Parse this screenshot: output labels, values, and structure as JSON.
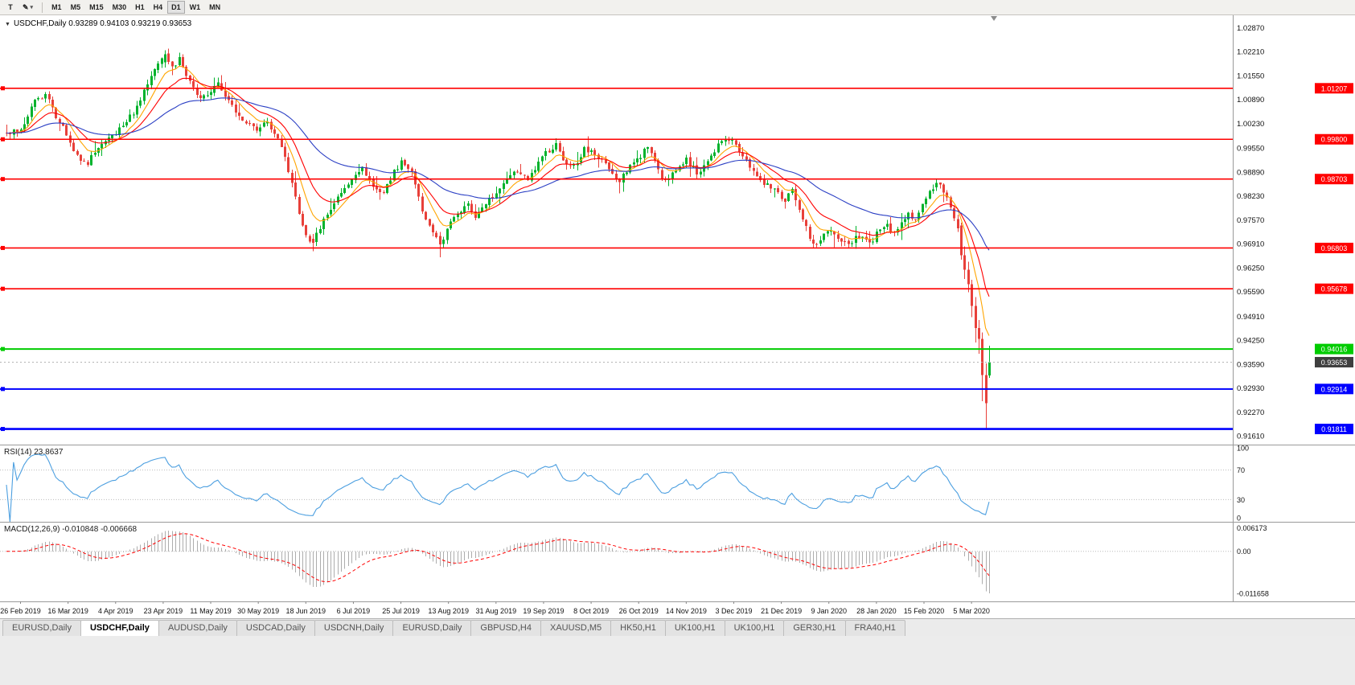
{
  "toolbar": {
    "text_tool_label": "T",
    "draw_tool_label": "✎",
    "dropdown_arrow": "▾",
    "timeframes": [
      "M1",
      "M5",
      "M15",
      "M30",
      "H1",
      "H4",
      "D1",
      "W1",
      "MN"
    ],
    "active_timeframe": "D1"
  },
  "chart": {
    "expander_icon": "▼",
    "title": "USDCHF,Daily 0.93289 0.94103 0.93219 0.93653",
    "symbol": "USDCHF",
    "period": "Daily"
  },
  "indicators": {
    "rsi_label": "RSI(14) 23.8637",
    "rsi_axis_labels": [
      "100",
      "70",
      "30",
      "0"
    ],
    "rsi_axis_values": [
      100,
      70,
      30,
      0
    ],
    "macd_label": "MACD(12,26,9) -0.010848 -0.006668",
    "macd_axis_top": "0.006173",
    "macd_axis_zero": "0.00",
    "macd_axis_bottom": "-0.011658"
  },
  "price_axis": {
    "ticks": [
      "1.02870",
      "1.02210",
      "1.01550",
      "1.00890",
      "1.00230",
      "0.99550",
      "0.98890",
      "0.98230",
      "0.97570",
      "0.96910",
      "0.96250",
      "0.95590",
      "0.94910",
      "0.94250",
      "0.93590",
      "0.92930",
      "0.92270",
      "0.91610"
    ]
  },
  "time_axis": {
    "labels": [
      "26 Feb 2019",
      "16 Mar 2019",
      "4 Apr 2019",
      "23 Apr 2019",
      "11 May 2019",
      "30 May 2019",
      "18 Jun 2019",
      "6 Jul 2019",
      "25 Jul 2019",
      "13 Aug 2019",
      "31 Aug 2019",
      "19 Sep 2019",
      "8 Oct 2019",
      "26 Oct 2019",
      "14 Nov 2019",
      "3 Dec 2019",
      "21 Dec 2019",
      "9 Jan 2020",
      "28 Jan 2020",
      "15 Feb 2020",
      "5 Mar 2020"
    ]
  },
  "levels": [
    {
      "label": "1.01207",
      "value": 1.01207,
      "color": "#FF0000",
      "width": 1.6
    },
    {
      "label": "0.99800",
      "value": 0.998,
      "color": "#FF0000",
      "width": 1.6
    },
    {
      "label": "0.98703",
      "value": 0.98703,
      "color": "#FF0000",
      "width": 1.6
    },
    {
      "label": "0.96803",
      "value": 0.96803,
      "color": "#FF0000",
      "width": 1.6
    },
    {
      "label": "0.95678",
      "value": 0.95678,
      "color": "#FF0000",
      "width": 1.6
    },
    {
      "label": "0.94016",
      "value": 0.94016,
      "color": "#00CC00",
      "width": 2
    },
    {
      "label": "0.92914",
      "value": 0.92914,
      "color": "#0000FF",
      "width": 2
    },
    {
      "label": "0.91811",
      "value": 0.91811,
      "color": "#0000FF",
      "width": 2.6
    }
  ],
  "current_price": {
    "label": "0.93653",
    "value": 0.93653,
    "box_color": "#3F3F3F"
  },
  "tabs": {
    "items": [
      {
        "label": "EURUSD,Daily",
        "active": false
      },
      {
        "label": "USDCHF,Daily",
        "active": true
      },
      {
        "label": "AUDUSD,Daily",
        "active": false
      },
      {
        "label": "USDCAD,Daily",
        "active": false
      },
      {
        "label": "USDCNH,Daily",
        "active": false
      },
      {
        "label": "EURUSD,Daily",
        "active": false
      },
      {
        "label": "GBPUSD,H4",
        "active": false
      },
      {
        "label": "XAUUSD,M5",
        "active": false
      },
      {
        "label": "HK50,H1",
        "active": false
      },
      {
        "label": "UK100,H1",
        "active": false
      },
      {
        "label": "UK100,H1",
        "active": false
      },
      {
        "label": "GER30,H1",
        "active": false
      },
      {
        "label": "FRA40,H1",
        "active": false
      }
    ]
  },
  "chart_data": {
    "type": "candlestick",
    "symbol": "USDCHF",
    "period": "Daily",
    "bars_visible": 280,
    "price_range_top": 1.0322,
    "price_range_bottom": 0.9138,
    "current_ohlc": {
      "open": 0.93289,
      "high": 0.94103,
      "low": 0.93219,
      "close": 0.93653
    },
    "candle_up_color": "#00B22C",
    "candle_down_color": "#E8403A",
    "close_path_anchors": [
      [
        0,
        0.999
      ],
      [
        4,
        1.001
      ],
      [
        8,
        1.0085
      ],
      [
        11,
        1.0105
      ],
      [
        14,
        1.0045
      ],
      [
        17,
        0.9995
      ],
      [
        20,
        0.9935
      ],
      [
        23,
        0.9915
      ],
      [
        26,
        0.9955
      ],
      [
        29,
        0.9985
      ],
      [
        31,
        1.0
      ],
      [
        34,
        1.003
      ],
      [
        37,
        1.007
      ],
      [
        40,
        1.013
      ],
      [
        43,
        1.019
      ],
      [
        45,
        1.0215
      ],
      [
        47,
        1.0175
      ],
      [
        49,
        1.0205
      ],
      [
        52,
        1.0135
      ],
      [
        55,
        1.009
      ],
      [
        58,
        1.0115
      ],
      [
        60,
        1.0135
      ],
      [
        62,
        1.0095
      ],
      [
        65,
        1.0055
      ],
      [
        68,
        1.0025
      ],
      [
        71,
        1.0005
      ],
      [
        74,
        1.0025
      ],
      [
        77,
        0.9985
      ],
      [
        80,
        0.9895
      ],
      [
        83,
        0.9775
      ],
      [
        85,
        0.9715
      ],
      [
        87,
        0.9695
      ],
      [
        90,
        0.9755
      ],
      [
        93,
        0.98
      ],
      [
        96,
        0.985
      ],
      [
        98,
        0.9875
      ],
      [
        101,
        0.9905
      ],
      [
        104,
        0.985
      ],
      [
        107,
        0.983
      ],
      [
        110,
        0.989
      ],
      [
        112,
        0.9915
      ],
      [
        115,
        0.989
      ],
      [
        117,
        0.9815
      ],
      [
        119,
        0.976
      ],
      [
        121,
        0.972
      ],
      [
        123,
        0.969
      ],
      [
        125,
        0.973
      ],
      [
        128,
        0.9775
      ],
      [
        131,
        0.9795
      ],
      [
        133,
        0.9765
      ],
      [
        136,
        0.98
      ],
      [
        139,
        0.9835
      ],
      [
        142,
        0.987
      ],
      [
        145,
        0.9895
      ],
      [
        148,
        0.9865
      ],
      [
        151,
        0.9915
      ],
      [
        153,
        0.994
      ],
      [
        156,
        0.9965
      ],
      [
        158,
        0.9925
      ],
      [
        161,
        0.9905
      ],
      [
        164,
        0.9955
      ],
      [
        166,
        0.9945
      ],
      [
        169,
        0.992
      ],
      [
        172,
        0.988
      ],
      [
        174,
        0.9865
      ],
      [
        177,
        0.9905
      ],
      [
        180,
        0.9935
      ],
      [
        182,
        0.9965
      ],
      [
        184,
        0.9925
      ],
      [
        186,
        0.9865
      ],
      [
        189,
        0.9885
      ],
      [
        192,
        0.991
      ],
      [
        193,
        0.9925
      ],
      [
        196,
        0.9885
      ],
      [
        199,
        0.9925
      ],
      [
        202,
        0.9965
      ],
      [
        204,
        0.9985
      ],
      [
        207,
        0.997
      ],
      [
        210,
        0.992
      ],
      [
        213,
        0.9875
      ],
      [
        216,
        0.9855
      ],
      [
        219,
        0.983
      ],
      [
        221,
        0.9815
      ],
      [
        223,
        0.984
      ],
      [
        225,
        0.979
      ],
      [
        227,
        0.9735
      ],
      [
        229,
        0.969
      ],
      [
        231,
        0.9705
      ],
      [
        234,
        0.973
      ],
      [
        236,
        0.971
      ],
      [
        239,
        0.969
      ],
      [
        242,
        0.9715
      ],
      [
        245,
        0.969
      ],
      [
        247,
        0.972
      ],
      [
        250,
        0.974
      ],
      [
        252,
        0.972
      ],
      [
        254,
        0.9745
      ],
      [
        256,
        0.9775
      ],
      [
        258,
        0.9755
      ],
      [
        260,
        0.9795
      ],
      [
        262,
        0.9835
      ],
      [
        264,
        0.986
      ],
      [
        266,
        0.984
      ],
      [
        268,
        0.9795
      ],
      [
        270,
        0.974
      ],
      [
        271,
        0.966
      ],
      [
        272,
        0.962
      ],
      [
        273,
        0.958
      ],
      [
        274,
        0.952
      ],
      [
        275,
        0.946
      ],
      [
        276,
        0.943
      ],
      [
        277,
        0.933
      ],
      [
        278,
        0.9252
      ],
      [
        279,
        0.93653
      ]
    ],
    "explicit_bars": [
      {
        "i": 45,
        "o": 1.0192,
        "h": 1.0226,
        "l": 1.0178,
        "c": 1.0215
      },
      {
        "i": 87,
        "o": 0.9706,
        "h": 0.9719,
        "l": 0.9671,
        "c": 0.9695
      },
      {
        "i": 123,
        "o": 0.9713,
        "h": 0.9724,
        "l": 0.9655,
        "c": 0.969
      },
      {
        "i": 264,
        "o": 0.9848,
        "h": 0.9872,
        "l": 0.9838,
        "c": 0.986
      },
      {
        "i": 271,
        "o": 0.9742,
        "h": 0.975,
        "l": 0.9648,
        "c": 0.966
      },
      {
        "i": 272,
        "o": 0.966,
        "h": 0.9685,
        "l": 0.9595,
        "c": 0.962
      },
      {
        "i": 273,
        "o": 0.962,
        "h": 0.9642,
        "l": 0.9558,
        "c": 0.958
      },
      {
        "i": 274,
        "o": 0.958,
        "h": 0.9592,
        "l": 0.9489,
        "c": 0.952
      },
      {
        "i": 275,
        "o": 0.952,
        "h": 0.9545,
        "l": 0.942,
        "c": 0.946
      },
      {
        "i": 276,
        "o": 0.946,
        "h": 0.9482,
        "l": 0.9388,
        "c": 0.943
      },
      {
        "i": 277,
        "o": 0.943,
        "h": 0.9447,
        "l": 0.9258,
        "c": 0.933
      },
      {
        "i": 278,
        "o": 0.933,
        "h": 0.9362,
        "l": 0.91811,
        "c": 0.9252
      },
      {
        "i": 279,
        "o": 0.93289,
        "h": 0.94103,
        "l": 0.93219,
        "c": 0.93653
      }
    ],
    "moving_averages": [
      {
        "period": 8,
        "color": "#FFA500"
      },
      {
        "period": 16,
        "color": "#FF0000"
      },
      {
        "period": 45,
        "color": "#2B3FC4"
      }
    ],
    "rsi": {
      "period": 14,
      "current": 23.8637,
      "color": "#4C9FE0",
      "guide_levels": [
        70,
        30
      ]
    },
    "macd": {
      "fast": 12,
      "slow": 26,
      "signal": 9,
      "macd_current": -0.010848,
      "signal_current": -0.006668,
      "hist_color": "#ADADAD",
      "signal_color": "#FF0000",
      "axis_max": 0.006173,
      "axis_min": -0.011658
    }
  }
}
